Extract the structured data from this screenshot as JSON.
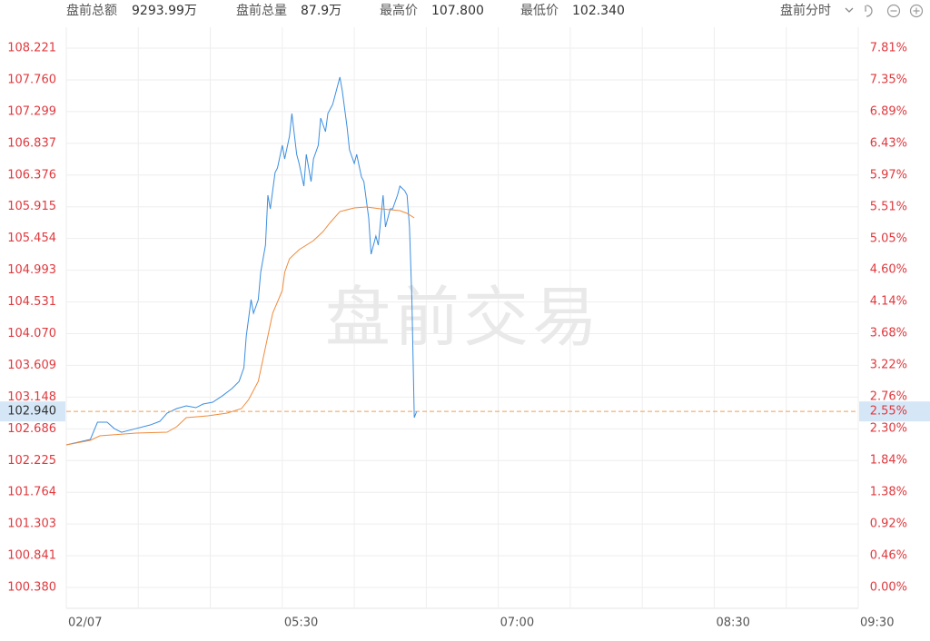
{
  "header": {
    "stats": [
      {
        "label": "盘前总额",
        "value": "9293.99万"
      },
      {
        "label": "盘前总量",
        "value": "87.9万"
      },
      {
        "label": "最高价",
        "value": "107.800"
      },
      {
        "label": "最低价",
        "value": "102.340"
      }
    ],
    "mode": "盘前分时"
  },
  "chart_data": {
    "type": "line",
    "watermark": "盘前交易",
    "xlim": [
      "04:00",
      "09:30"
    ],
    "xticks": [
      {
        "value": "04:00",
        "label": "02/07"
      },
      {
        "value": "04:30",
        "label": null
      },
      {
        "value": "05:00",
        "label": null
      },
      "05:30",
      {
        "value": "06:00",
        "label": null
      },
      {
        "value": "06:30",
        "label": null
      },
      "07:00",
      {
        "value": "07:30",
        "label": null
      },
      {
        "value": "08:00",
        "label": null
      },
      "08:30",
      {
        "value": "09:00",
        "label": null
      },
      "09:30"
    ],
    "ylim": [
      100.077,
      108.525
    ],
    "yticks": [
      108.221,
      {
        "value": 107.76,
        "label": "107.760"
      },
      107.299,
      106.837,
      106.376,
      105.915,
      105.454,
      104.993,
      104.531,
      {
        "value": 104.07,
        "label": "104.070"
      },
      103.609,
      103.148,
      102.686,
      102.225,
      101.764,
      101.303,
      100.841,
      {
        "value": 100.38,
        "label": "100.380"
      }
    ],
    "y2lim": [
      -0.302,
      8.114
    ],
    "y2ticks": [
      {
        "value": 7.81,
        "label": "7.81%"
      },
      {
        "value": 7.35,
        "label": "7.35%"
      },
      {
        "value": 6.89,
        "label": "6.89%"
      },
      {
        "value": 6.43,
        "label": "6.43%"
      },
      {
        "value": 5.97,
        "label": "5.97%"
      },
      {
        "value": 5.51,
        "label": "5.51%"
      },
      {
        "value": 5.05,
        "label": "5.05%"
      },
      {
        "value": 4.6,
        "label": "4.60%"
      },
      {
        "value": 4.14,
        "label": "4.14%"
      },
      {
        "value": 3.68,
        "label": "3.68%"
      },
      {
        "value": 3.22,
        "label": "3.22%"
      },
      {
        "value": 2.76,
        "label": "2.76%"
      },
      {
        "value": 2.3,
        "label": "2.30%"
      },
      {
        "value": 1.84,
        "label": "1.84%"
      },
      {
        "value": 1.38,
        "label": "1.38%"
      },
      {
        "value": 0.92,
        "label": "0.92%"
      },
      {
        "value": 0.46,
        "label": "0.46%"
      },
      {
        "value": 0.0,
        "label": "0.00%"
      }
    ],
    "grid": true,
    "current_price": {
      "value": 102.94,
      "label": "102.940"
    },
    "current_change": {
      "value": 2.55,
      "label": "2.55%"
    },
    "current_color": "#f0a050",
    "series": [
      {
        "color": "#3a8ee0",
        "x": [
          "04:00",
          "04:05",
          "04:10",
          "04:13",
          "04:17",
          "04:20",
          "04:23",
          "04:29",
          "04:35",
          "04:39",
          "04:42",
          "04:46",
          "04:50",
          "04:54",
          "04:57",
          "05:01",
          "05:05",
          "05:09",
          "05:12",
          "05:14",
          "05:15",
          "05:17",
          "05:18",
          "05:20",
          "05:21",
          "05:23",
          "05:24",
          "05:25",
          "05:27",
          "05:28",
          "05:30",
          "05:31",
          "05:33",
          "05:34",
          "05:36",
          "05:37",
          "05:39",
          "05:40",
          "05:42",
          "05:43",
          "05:45",
          "05:46",
          "05:48",
          "05:49",
          "05:51",
          "05:52",
          "05:54",
          "05:55",
          "05:57",
          "05:58",
          "06:00",
          "06:01",
          "06:03",
          "06:04",
          "06:06",
          "06:07",
          "06:09",
          "06:10",
          "06:12",
          "06:13",
          "06:15",
          "06:16",
          "06:18",
          "06:19",
          "06:21",
          "06:22",
          "06:23",
          "06:24",
          "06:25",
          "06:26"
        ],
        "values": [
          102.453,
          102.492,
          102.532,
          102.783,
          102.783,
          102.69,
          102.637,
          102.69,
          102.743,
          102.796,
          102.914,
          102.981,
          103.02,
          102.994,
          103.047,
          103.073,
          103.165,
          103.271,
          103.376,
          103.575,
          104.037,
          104.565,
          104.367,
          104.565,
          104.961,
          105.357,
          106.083,
          105.885,
          106.413,
          106.479,
          106.809,
          106.611,
          106.941,
          107.271,
          106.677,
          106.545,
          106.215,
          106.677,
          106.281,
          106.611,
          106.809,
          107.205,
          107.007,
          107.271,
          107.403,
          107.535,
          107.8,
          107.601,
          107.073,
          106.743,
          106.545,
          106.677,
          106.347,
          106.281,
          105.753,
          105.225,
          105.489,
          105.357,
          106.083,
          105.621,
          105.885,
          105.885,
          106.083,
          106.215,
          106.149,
          106.083,
          105.621,
          104.565,
          102.849,
          102.94
        ]
      },
      {
        "color": "#f08a3c",
        "x": [
          "04:00",
          "04:10",
          "04:14",
          "04:29",
          "04:42",
          "04:46",
          "04:50",
          "04:59",
          "05:07",
          "05:13",
          "05:16",
          "05:20",
          "05:22",
          "05:24",
          "05:26",
          "05:30",
          "05:31",
          "05:33",
          "05:37",
          "05:43",
          "05:47",
          "05:50",
          "05:54",
          "06:00",
          "06:05",
          "06:11",
          "06:19",
          "06:22",
          "06:25"
        ],
        "values": [
          102.453,
          102.519,
          102.585,
          102.625,
          102.637,
          102.717,
          102.849,
          102.875,
          102.915,
          102.981,
          103.113,
          103.377,
          103.707,
          104.037,
          104.367,
          104.697,
          104.961,
          105.159,
          105.291,
          105.423,
          105.555,
          105.687,
          105.845,
          105.898,
          105.911,
          105.885,
          105.858,
          105.819,
          105.753
        ]
      }
    ]
  }
}
